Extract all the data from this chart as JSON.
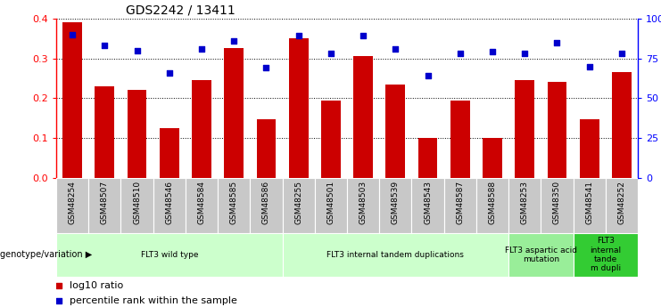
{
  "title": "GDS2242 / 13411",
  "samples": [
    "GSM48254",
    "GSM48507",
    "GSM48510",
    "GSM48546",
    "GSM48584",
    "GSM48585",
    "GSM48586",
    "GSM48255",
    "GSM48501",
    "GSM48503",
    "GSM48539",
    "GSM48543",
    "GSM48587",
    "GSM48588",
    "GSM48253",
    "GSM48350",
    "GSM48541",
    "GSM48252"
  ],
  "log10_ratio": [
    0.39,
    0.23,
    0.22,
    0.125,
    0.245,
    0.325,
    0.148,
    0.35,
    0.195,
    0.305,
    0.235,
    0.1,
    0.195,
    0.1,
    0.245,
    0.24,
    0.148,
    0.265
  ],
  "percentile_rank": [
    90,
    83,
    80,
    66,
    81,
    86,
    69,
    89,
    78,
    89,
    81,
    64,
    78,
    79,
    78,
    85,
    70,
    78
  ],
  "bar_color": "#cc0000",
  "dot_color": "#0000cc",
  "groups": [
    {
      "label": "FLT3 wild type",
      "start": 0,
      "end": 7,
      "color": "#ccffcc"
    },
    {
      "label": "FLT3 internal tandem duplications",
      "start": 7,
      "end": 14,
      "color": "#ccffcc"
    },
    {
      "label": "FLT3 aspartic acid\nmutation",
      "start": 14,
      "end": 16,
      "color": "#99ee99"
    },
    {
      "label": "FLT3\ninternal\ntande\nm dupli",
      "start": 16,
      "end": 18,
      "color": "#33cc33"
    }
  ],
  "left_label": "genotype/variation",
  "legend1_label": "log10 ratio",
  "legend2_label": "percentile rank within the sample",
  "ylim_left": [
    0,
    0.4
  ],
  "ylim_right": [
    0,
    100
  ],
  "yticks_left": [
    0,
    0.1,
    0.2,
    0.3,
    0.4
  ],
  "yticks_right": [
    0,
    25,
    50,
    75,
    100
  ],
  "ytick_right_labels": [
    "0",
    "25",
    "50",
    "75",
    "100%"
  ]
}
